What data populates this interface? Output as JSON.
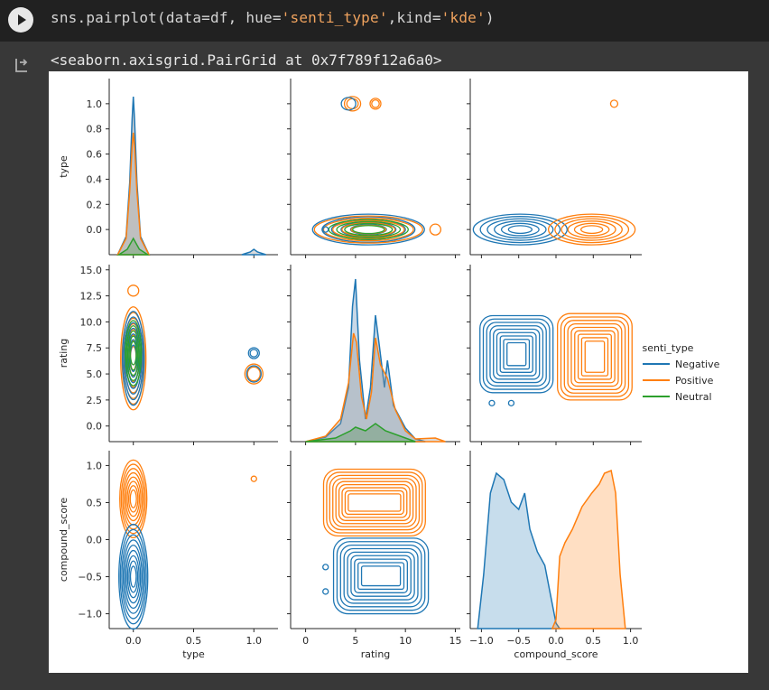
{
  "code": {
    "prefix": "sns.pairplot(data=df, hue=",
    "str1": "'senti_type'",
    "mid": ",kind=",
    "str2": "'kde'",
    "suffix": ")"
  },
  "output": {
    "repr": "<seaborn.axisgrid.PairGrid at 0x7f789f12a6a0>"
  },
  "icons": {
    "run": "play-icon",
    "output": "output-arrow-icon"
  },
  "colors": {
    "negative": "#1f77b4",
    "positive": "#ff7f0e",
    "neutral": "#2ca02c"
  },
  "chart_data": {
    "type": "pairplot-kde",
    "variables": [
      "type",
      "rating",
      "compound_score"
    ],
    "hue": "senti_type",
    "legend": {
      "title": "senti_type",
      "entries": [
        "Negative",
        "Positive",
        "Neutral"
      ],
      "placement": "right"
    },
    "axes": {
      "type": {
        "label": "type",
        "ticks": [
          "0.0",
          "0.5",
          "1.0"
        ],
        "ylim": [
          -0.2,
          1.2
        ],
        "yticks": [
          "0.0",
          "0.2",
          "0.4",
          "0.6",
          "0.8",
          "1.0"
        ]
      },
      "rating": {
        "label": "rating",
        "ticks": [
          "0",
          "5",
          "10",
          "15"
        ],
        "ylim": [
          -1.5,
          15.5
        ],
        "yticks": [
          "0.0",
          "2.5",
          "5.0",
          "7.5",
          "10.0",
          "12.5",
          "15.0"
        ]
      },
      "compound_score": {
        "label": "compound_score",
        "ticks": [
          "−1.0",
          "−0.5",
          "0.0",
          "0.5",
          "1.0"
        ],
        "ylim": [
          -1.2,
          1.2
        ],
        "yticks": [
          "−1.0",
          "−0.5",
          "0.0",
          "0.5",
          "1.0"
        ]
      }
    }
  }
}
